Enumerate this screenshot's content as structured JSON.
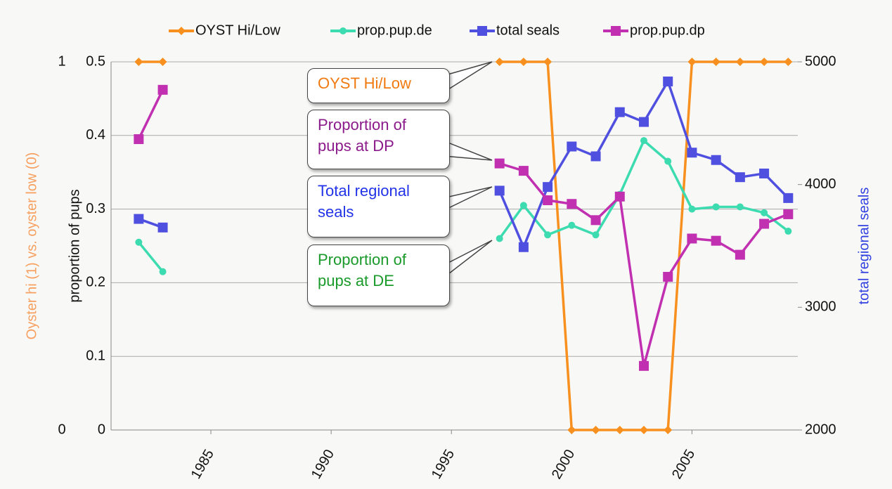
{
  "chart_data": {
    "type": "line",
    "x": [
      1982,
      1983,
      1984,
      1985,
      1986,
      1987,
      1988,
      1989,
      1990,
      1991,
      1992,
      1993,
      1994,
      1995,
      1996,
      1997,
      1998,
      1999,
      2000,
      2001,
      2002,
      2003,
      2004,
      2005,
      2006,
      2007,
      2008,
      2009
    ],
    "series": [
      {
        "name": "OYST Hi/Low",
        "color": "#f7901e",
        "axis": "y3",
        "marker": "diamond",
        "values": [
          1,
          1,
          null,
          null,
          null,
          null,
          null,
          null,
          null,
          null,
          null,
          null,
          null,
          null,
          null,
          1,
          1,
          1,
          0,
          0,
          0,
          0,
          0,
          1,
          1,
          1,
          1,
          1
        ]
      },
      {
        "name": "prop.pup.de",
        "color": "#3ddbb0",
        "axis": "y",
        "marker": "circle",
        "values": [
          0.255,
          0.215,
          null,
          null,
          null,
          null,
          null,
          null,
          null,
          null,
          null,
          null,
          null,
          null,
          null,
          0.26,
          0.305,
          0.265,
          0.278,
          0.265,
          0.32,
          0.393,
          0.365,
          0.3,
          0.303,
          0.303,
          0.295,
          0.27
        ]
      },
      {
        "name": "total seals",
        "color": "#5050e0",
        "axis": "y2",
        "marker": "square",
        "values": [
          3720,
          3650,
          null,
          null,
          null,
          null,
          null,
          null,
          null,
          null,
          null,
          null,
          null,
          null,
          null,
          3950,
          3490,
          3980,
          4310,
          4230,
          4590,
          4510,
          4840,
          4260,
          4200,
          4060,
          4090,
          3890
        ]
      },
      {
        "name": "prop.pup.dp",
        "color": "#c030b0",
        "axis": "y",
        "marker": "square",
        "values": [
          0.395,
          0.462,
          null,
          null,
          null,
          null,
          null,
          null,
          null,
          null,
          null,
          null,
          null,
          null,
          null,
          0.362,
          0.352,
          0.312,
          0.307,
          0.285,
          0.317,
          0.087,
          0.208,
          0.26,
          0.257,
          0.238,
          0.28,
          0.293
        ]
      }
    ],
    "xlim": [
      1980.85,
      2009.4
    ],
    "xticks": [
      1985,
      1990,
      1995,
      2000,
      2005
    ],
    "ylim": [
      0,
      0.5
    ],
    "yticks": [
      0,
      0.1,
      0.2,
      0.3,
      0.4,
      0.5
    ],
    "y2lim": [
      2000,
      5000
    ],
    "y2ticks": [
      2000,
      3000,
      4000,
      5000
    ],
    "y3lim": [
      0,
      1
    ],
    "y3ticks": [
      0,
      1
    ],
    "ylabel": "proportion of pups",
    "y2label": "total regional seals",
    "y3label": "Oyster hi (1) vs. oyster low (0)",
    "grid": true,
    "legend": "top",
    "annotations": [
      {
        "text": "OYST Hi/Low",
        "color": "#f07a10"
      },
      {
        "text": "Proportion of pups at DP",
        "color": "#8b1a8b"
      },
      {
        "text": "Total regional seals",
        "color": "#2233e8"
      },
      {
        "text": "Proportion of pups at DE",
        "color": "#1a9a2a"
      }
    ]
  }
}
